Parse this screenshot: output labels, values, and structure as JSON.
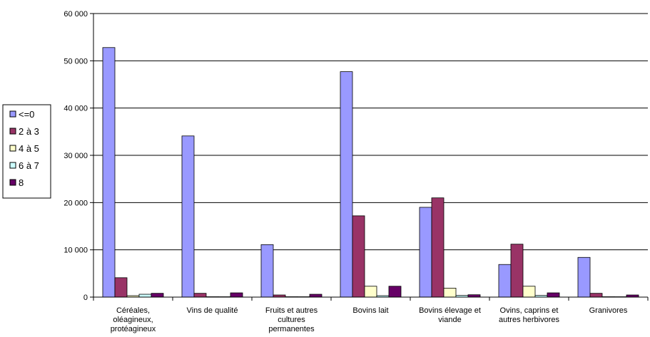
{
  "chart_data": {
    "type": "bar",
    "categories": [
      [
        "Céréales,",
        "oléagineux,",
        "protéagineux"
      ],
      [
        "Vins de qualité"
      ],
      [
        "Fruits et autres",
        "cultures",
        "permanentes"
      ],
      [
        "Bovins lait"
      ],
      [
        "Bovins élevage et",
        "viande"
      ],
      [
        "Ovins, caprins et",
        "autres herbivores"
      ],
      [
        "Granivores"
      ]
    ],
    "series": [
      {
        "name": "<=0",
        "color": "#9999FF",
        "values": [
          52800,
          34100,
          11100,
          47700,
          19000,
          6900,
          8400
        ]
      },
      {
        "name": "2 à 3",
        "color": "#993366",
        "values": [
          4100,
          800,
          450,
          17200,
          21000,
          11200,
          800
        ]
      },
      {
        "name": "4 à 5",
        "color": "#FFFFCC",
        "values": [
          300,
          80,
          80,
          2300,
          1900,
          2300,
          80
        ]
      },
      {
        "name": "6 à 7",
        "color": "#CCFFFF",
        "values": [
          600,
          30,
          30,
          300,
          350,
          350,
          30
        ]
      },
      {
        "name": "8",
        "color": "#660066",
        "values": [
          800,
          900,
          600,
          2300,
          500,
          900,
          450
        ]
      }
    ],
    "ylim": [
      0,
      60000
    ],
    "yticks": [
      0,
      10000,
      20000,
      30000,
      40000,
      50000,
      60000
    ],
    "ytick_labels": [
      "0",
      "10 000",
      "20 000",
      "30 000",
      "40 000",
      "50 000",
      "60 000"
    ],
    "grid": true,
    "legend_position": "left"
  }
}
